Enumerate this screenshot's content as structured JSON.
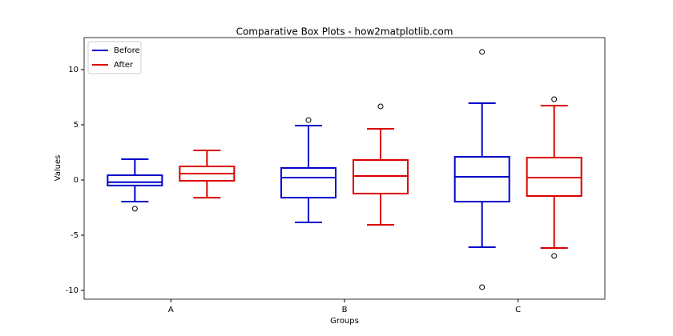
{
  "chart_data": {
    "type": "boxplot",
    "title": "Comparative Box Plots - how2matplotlib.com",
    "x_label": "Groups",
    "y_label": "Values",
    "categories": [
      "A",
      "B",
      "C"
    ],
    "ylim": [
      -10.8,
      12.9
    ],
    "yticks": [
      -10,
      -5,
      0,
      5,
      10
    ],
    "legend": "upper left",
    "series": [
      {
        "name": "Before",
        "color": "#0000cc",
        "boxes": [
          {
            "whislo": -1.96,
            "q1": -0.5,
            "median": -0.2,
            "q3": 0.43,
            "whishi": 1.88,
            "fliers": [
              -2.6
            ]
          },
          {
            "whislo": -3.84,
            "q1": -1.6,
            "median": 0.22,
            "q3": 1.09,
            "whishi": 4.93,
            "fliers": [
              5.43
            ]
          },
          {
            "whislo": -6.09,
            "q1": -1.96,
            "median": 0.29,
            "q3": 2.1,
            "whishi": 6.96,
            "fliers": [
              11.6,
              -9.71
            ]
          }
        ]
      },
      {
        "name": "After",
        "color": "#dd0000",
        "boxes": [
          {
            "whislo": -1.6,
            "q1": -0.07,
            "median": 0.58,
            "q3": 1.23,
            "whishi": 2.68,
            "fliers": []
          },
          {
            "whislo": -4.06,
            "q1": -1.23,
            "median": 0.36,
            "q3": 1.81,
            "whishi": 4.64,
            "fliers": [
              6.67
            ]
          },
          {
            "whislo": -6.16,
            "q1": -1.45,
            "median": 0.22,
            "q3": 2.03,
            "whishi": 6.74,
            "fliers": [
              7.32,
              -6.88
            ]
          }
        ]
      }
    ]
  }
}
